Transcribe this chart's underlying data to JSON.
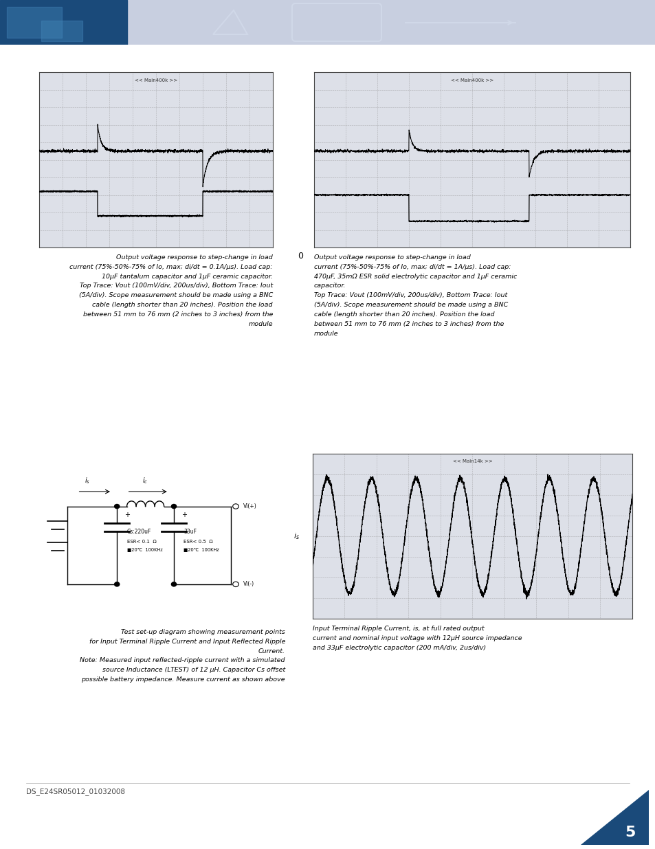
{
  "page_bg": "#ffffff",
  "header_bg": "#c8cfe0",
  "header_blue_bg": "#1a4a7a",
  "page_number": "5",
  "doc_id": "DS_E24SR05012_01032008",
  "scope_label1": "<< Main400k >>",
  "scope_label2": "<< Main400k >>",
  "scope_label3": "<< Main14k >>",
  "caption1_lines": [
    "Output voltage response to step-change in load",
    "current (75%-50%-75% of Io, max; di/dt = 0.1A/μs). Load cap:",
    "10μF tantalum capacitor and 1μF ceramic capacitor.",
    "Top Trace: Vout (100mV/div, 200us/div), Bottom Trace: Iout",
    "(5A/div). Scope measurement should be made using a BNC",
    "cable (length shorter than 20 inches). Position the load",
    "between 51 mm to 76 mm (2 inches to 3 inches) from the",
    "module"
  ],
  "caption2_lines": [
    "Output voltage response to step-change in load",
    "current (75%-50%-75% of Io, max; di/dt = 1A/μs). Load cap:",
    "470μF, 35mΩ ESR solid electrolytic capacitor and 1μF ceramic",
    "capacitor.",
    "Top Trace: Vout (100mV/div, 200us/div), Bottom Trace: Iout",
    "(5A/div). Scope measurement should be made using a BNC",
    "cable (length shorter than 20 inches). Position the load",
    "between 51 mm to 76 mm (2 inches to 3 inches) from the",
    "module"
  ],
  "caption3_lines": [
    "Test set-up diagram showing measurement points",
    "for Input Terminal Ripple Current and Input Reflected Ripple",
    "Current.",
    "Note: Measured input reflected-ripple current with a simulated",
    "source Inductance (LTEST) of 12 μH. Capacitor Cs offset",
    "possible battery impedance. Measure current as shown above"
  ],
  "caption4_lines": [
    "Input Terminal Ripple Current, is, at full rated output",
    "current and nominal input voltage with 12μH source impedance",
    "and 33μF electrolytic capacitor (200 mA/div, 2us/div)"
  ]
}
